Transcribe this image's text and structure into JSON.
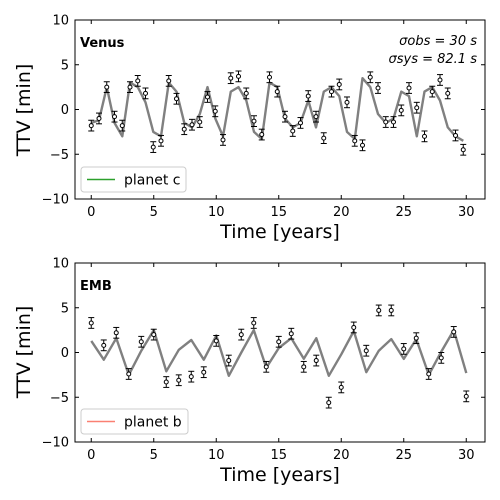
{
  "chart_data": [
    {
      "type": "line",
      "panel_label": "Venus",
      "xlabel": "Time [years]",
      "ylabel": "TTV [min]",
      "xlim": [
        -1.3,
        31.5
      ],
      "ylim": [
        -10,
        10
      ],
      "xticks": [
        0,
        5,
        10,
        15,
        20,
        25,
        30
      ],
      "yticks": [
        -10,
        -5,
        0,
        5,
        10
      ],
      "tick_labels_x": [
        "0",
        "5",
        "10",
        "15",
        "20",
        "25",
        "30"
      ],
      "tick_labels_y": [
        "−10",
        "−5",
        "0",
        "5",
        "10"
      ],
      "grid": false,
      "legend_position": "lower-left",
      "annotations": [
        "σobs = 30 s",
        "σsys = 82.1 s"
      ],
      "series": [
        {
          "name": "planet c",
          "role": "model",
          "color": "#808080",
          "x": [
            0,
            0.62,
            1.24,
            1.86,
            2.48,
            3.1,
            3.72,
            4.34,
            4.96,
            5.58,
            6.2,
            6.82,
            7.44,
            8.06,
            8.68,
            9.3,
            9.92,
            10.54,
            11.16,
            11.78,
            12.4,
            13.02,
            13.64,
            14.26,
            14.88,
            15.5,
            16.12,
            16.74,
            17.36,
            17.98,
            18.6,
            19.22,
            19.84,
            20.46,
            21.08,
            21.7,
            22.32,
            22.94,
            23.56,
            24.18,
            24.8,
            25.42,
            26.04,
            26.66,
            27.28,
            27.9,
            28.52,
            29.14,
            29.76
          ],
          "y": [
            -1.5,
            -1.2,
            2.5,
            -1.5,
            -3.0,
            3.0,
            2.5,
            0.8,
            -2.5,
            -3.0,
            3.0,
            2.0,
            -1.5,
            -2.0,
            -0.5,
            2.5,
            -1.0,
            -3.0,
            2.0,
            2.5,
            1.0,
            -2.5,
            -3.3,
            3.0,
            2.5,
            -1.0,
            -2.0,
            -1.5,
            1.0,
            -2.0,
            2.0,
            2.5,
            1.5,
            -2.5,
            -3.3,
            3.5,
            2.5,
            -0.5,
            -1.5,
            -1.0,
            2.0,
            1.5,
            -3.0,
            2.0,
            2.5,
            1.0,
            -2.0,
            -3.0,
            -3.5
          ]
        },
        {
          "name": "",
          "role": "observations",
          "color": "#000000",
          "x": [
            0,
            0.62,
            1.24,
            1.86,
            2.48,
            3.1,
            3.72,
            4.34,
            4.96,
            5.58,
            6.2,
            6.82,
            7.44,
            8.06,
            8.68,
            9.3,
            9.92,
            10.54,
            11.16,
            11.78,
            12.4,
            13.02,
            13.64,
            14.26,
            14.88,
            15.5,
            16.12,
            16.74,
            17.36,
            17.98,
            18.6,
            19.22,
            19.84,
            20.46,
            21.08,
            21.7,
            22.32,
            22.94,
            23.56,
            24.18,
            24.8,
            25.42,
            26.04,
            26.66,
            27.28,
            27.9,
            28.52,
            29.14,
            29.76
          ],
          "y": [
            -1.8,
            -1.0,
            2.5,
            -0.8,
            -1.8,
            2.5,
            3.2,
            1.8,
            -4.2,
            -3.5,
            3.2,
            1.2,
            -2.2,
            -1.7,
            -1.4,
            1.4,
            -0.2,
            -3.4,
            3.5,
            3.7,
            1.8,
            -1.3,
            -2.8,
            3.6,
            2.0,
            -0.8,
            -2.4,
            -1.5,
            1.5,
            -0.8,
            -3.2,
            2.0,
            2.8,
            0.8,
            -3.5,
            -4.0,
            3.6,
            2.4,
            -1.4,
            -1.4,
            -0.1,
            2.4,
            0.2,
            -3.0,
            2.0,
            3.3,
            1.8,
            -2.9,
            -4.5
          ],
          "yerr": 0.6
        }
      ]
    },
    {
      "type": "line",
      "panel_label": "EMB",
      "xlabel": "Time [years]",
      "ylabel": "TTV [min]",
      "xlim": [
        -1.3,
        31.5
      ],
      "ylim": [
        -10,
        10
      ],
      "xticks": [
        0,
        5,
        10,
        15,
        20,
        25,
        30
      ],
      "yticks": [
        -10,
        -5,
        0,
        5,
        10
      ],
      "tick_labels_x": [
        "0",
        "5",
        "10",
        "15",
        "20",
        "25",
        "30"
      ],
      "tick_labels_y": [
        "−10",
        "−5",
        "0",
        "5",
        "10"
      ],
      "grid": false,
      "legend_position": "lower-left",
      "series": [
        {
          "name": "planet b",
          "role": "model",
          "color": "#808080",
          "x": [
            0,
            1,
            2,
            3,
            4,
            5,
            6,
            7,
            8,
            9,
            10,
            11,
            12,
            13,
            14,
            15,
            16,
            17,
            18,
            19,
            20,
            21,
            22,
            23,
            24,
            25,
            26,
            27,
            28,
            29,
            30
          ],
          "y": [
            1.3,
            -0.8,
            1.6,
            -2.5,
            0.2,
            2.5,
            -2.1,
            0.3,
            1.4,
            -0.8,
            1.9,
            -2.6,
            0.0,
            2.5,
            -1.7,
            0.5,
            1.6,
            -0.7,
            1.6,
            -2.6,
            -0.2,
            2.4,
            -2.2,
            0.2,
            1.5,
            -0.7,
            1.5,
            -2.5,
            0.1,
            2.5,
            -2.3
          ]
        },
        {
          "name": "",
          "role": "observations",
          "color": "#000000",
          "x": [
            0,
            1,
            2,
            3,
            4,
            5,
            6,
            7,
            8,
            9,
            10,
            11,
            12,
            13,
            14,
            15,
            16,
            17,
            18,
            19,
            20,
            21,
            22,
            23,
            24,
            25,
            26,
            27,
            28,
            29,
            30
          ],
          "y": [
            3.3,
            0.8,
            2.2,
            -2.4,
            1.2,
            2.0,
            -3.3,
            -3.1,
            -2.7,
            -2.2,
            1.3,
            -0.9,
            2.0,
            3.3,
            -1.6,
            1.2,
            2.1,
            -1.6,
            -0.9,
            -5.6,
            -3.9,
            2.8,
            0.2,
            4.7,
            4.7,
            0.4,
            1.6,
            -2.4,
            -0.6,
            2.3,
            -4.9
          ],
          "yerr": 0.6
        }
      ]
    }
  ]
}
